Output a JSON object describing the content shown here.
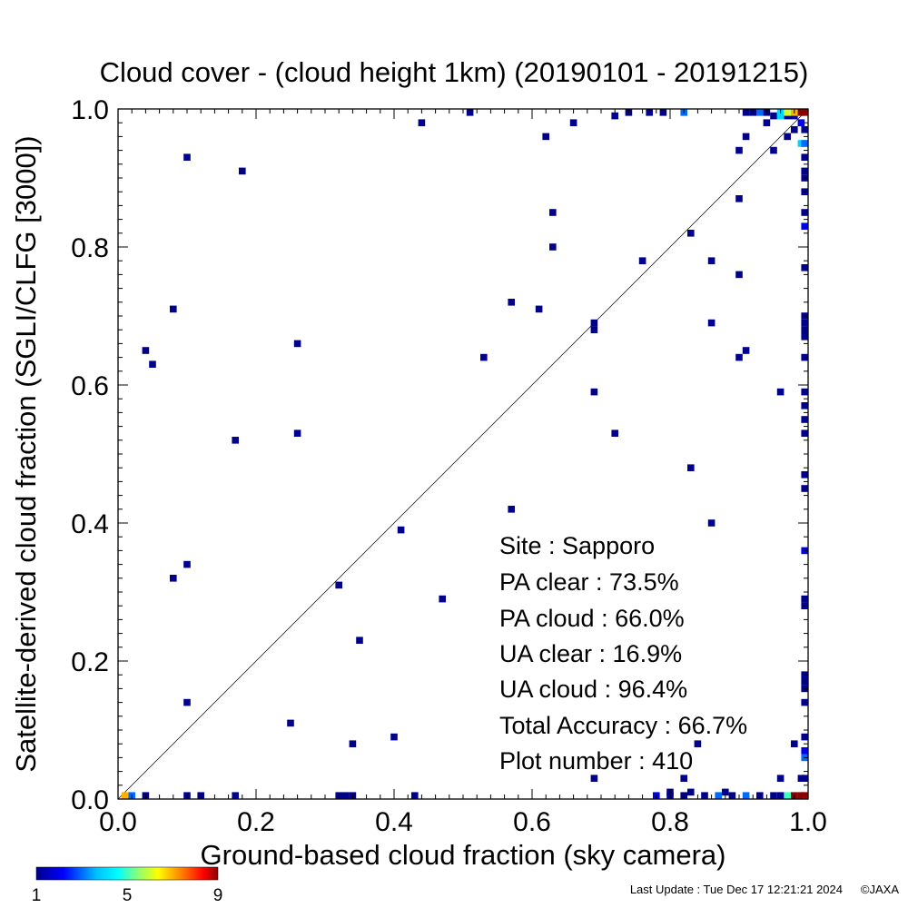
{
  "chart_data": {
    "type": "scatter",
    "title": "Cloud cover - (cloud height 1km)  (20190101 - 20191215)",
    "xlabel": "Ground-based cloud fraction (sky camera)",
    "ylabel": "Satellite-derived cloud fraction (SGLI/CLFG [3000])",
    "xlim": [
      0.0,
      1.0
    ],
    "ylim": [
      0.0,
      1.0
    ],
    "x_ticks": [
      "0.0",
      "0.2",
      "0.4",
      "0.6",
      "0.8",
      "1.0"
    ],
    "y_ticks": [
      "0.0",
      "0.2",
      "0.4",
      "0.6",
      "0.8",
      "1.0"
    ],
    "grid": false,
    "reference_line": "y = x",
    "colorbar": {
      "min": 1,
      "max": 9,
      "ticks": [
        "1",
        "5",
        "9"
      ]
    },
    "points": [
      [
        0.01,
        0.0,
        7
      ],
      [
        0.02,
        0.0,
        3
      ],
      [
        0.04,
        0.0,
        1
      ],
      [
        0.1,
        0.0,
        1
      ],
      [
        0.12,
        0.0,
        1
      ],
      [
        0.17,
        0.0,
        1
      ],
      [
        0.32,
        0.0,
        1
      ],
      [
        0.33,
        0.0,
        1
      ],
      [
        0.34,
        0.0,
        1
      ],
      [
        0.43,
        0.0,
        1
      ],
      [
        0.78,
        0.0,
        2
      ],
      [
        0.8,
        0.0,
        1
      ],
      [
        0.82,
        0.0,
        1
      ],
      [
        0.85,
        0.0,
        1
      ],
      [
        0.87,
        0.0,
        3
      ],
      [
        0.89,
        0.0,
        1
      ],
      [
        0.91,
        0.0,
        3
      ],
      [
        0.93,
        0.0,
        1
      ],
      [
        0.95,
        0.0,
        1
      ],
      [
        0.96,
        0.0,
        1
      ],
      [
        0.97,
        0.0,
        5
      ],
      [
        0.98,
        0.0,
        9
      ],
      [
        0.99,
        0.0,
        9
      ],
      [
        1.0,
        0.0,
        9
      ],
      [
        0.8,
        0.01,
        1
      ],
      [
        0.83,
        0.01,
        1
      ],
      [
        0.88,
        0.01,
        1
      ],
      [
        0.69,
        0.03,
        1
      ],
      [
        0.82,
        0.03,
        1
      ],
      [
        0.96,
        0.03,
        1
      ],
      [
        0.99,
        0.03,
        1
      ],
      [
        1.0,
        0.03,
        1
      ],
      [
        1.0,
        0.06,
        3
      ],
      [
        1.0,
        0.07,
        2
      ],
      [
        0.34,
        0.08,
        1
      ],
      [
        0.84,
        0.08,
        1
      ],
      [
        0.98,
        0.08,
        1
      ],
      [
        1.0,
        0.09,
        1
      ],
      [
        0.4,
        0.09,
        1
      ],
      [
        0.25,
        0.11,
        1
      ],
      [
        0.1,
        0.14,
        1
      ],
      [
        1.0,
        0.14,
        1
      ],
      [
        1.0,
        0.16,
        1
      ],
      [
        1.0,
        0.17,
        1
      ],
      [
        1.0,
        0.18,
        1
      ],
      [
        0.35,
        0.23,
        1
      ],
      [
        0.47,
        0.29,
        1
      ],
      [
        0.32,
        0.31,
        1
      ],
      [
        0.08,
        0.32,
        1
      ],
      [
        0.1,
        0.34,
        1
      ],
      [
        0.41,
        0.39,
        1
      ],
      [
        0.86,
        0.4,
        1
      ],
      [
        0.57,
        0.42,
        1
      ],
      [
        1.0,
        0.36,
        2
      ],
      [
        1.0,
        0.28,
        1
      ],
      [
        1.0,
        0.29,
        1
      ],
      [
        0.83,
        0.48,
        1
      ],
      [
        0.17,
        0.52,
        1
      ],
      [
        0.26,
        0.53,
        1
      ],
      [
        0.72,
        0.53,
        1
      ],
      [
        1.0,
        0.47,
        1
      ],
      [
        1.0,
        0.45,
        1
      ],
      [
        1.0,
        0.53,
        1
      ],
      [
        1.0,
        0.55,
        1
      ],
      [
        1.0,
        0.57,
        1
      ],
      [
        0.69,
        0.59,
        1
      ],
      [
        0.96,
        0.59,
        1
      ],
      [
        1.0,
        0.59,
        1
      ],
      [
        0.05,
        0.63,
        1
      ],
      [
        0.04,
        0.65,
        1
      ],
      [
        0.26,
        0.66,
        1
      ],
      [
        0.53,
        0.64,
        1
      ],
      [
        0.9,
        0.64,
        1
      ],
      [
        0.91,
        0.65,
        1
      ],
      [
        1.0,
        0.64,
        1
      ],
      [
        1.0,
        0.67,
        1
      ],
      [
        1.0,
        0.68,
        1
      ],
      [
        1.0,
        0.69,
        1
      ],
      [
        1.0,
        0.7,
        1
      ],
      [
        0.08,
        0.71,
        1
      ],
      [
        0.57,
        0.72,
        1
      ],
      [
        0.61,
        0.71,
        1
      ],
      [
        0.69,
        0.68,
        1
      ],
      [
        0.69,
        0.69,
        1
      ],
      [
        0.86,
        0.69,
        1
      ],
      [
        0.9,
        0.76,
        1
      ],
      [
        0.76,
        0.78,
        1
      ],
      [
        0.86,
        0.78,
        1
      ],
      [
        1.0,
        0.77,
        1
      ],
      [
        0.63,
        0.8,
        1
      ],
      [
        0.83,
        0.82,
        1
      ],
      [
        0.63,
        0.85,
        1
      ],
      [
        0.9,
        0.87,
        1
      ],
      [
        1.0,
        0.83,
        2
      ],
      [
        1.0,
        0.85,
        1
      ],
      [
        1.0,
        0.88,
        1
      ],
      [
        1.0,
        0.9,
        1
      ],
      [
        1.0,
        0.91,
        1
      ],
      [
        0.18,
        0.91,
        1
      ],
      [
        0.1,
        0.93,
        1
      ],
      [
        1.0,
        0.93,
        1
      ],
      [
        0.9,
        0.94,
        1
      ],
      [
        0.95,
        0.94,
        1
      ],
      [
        0.99,
        0.95,
        4
      ],
      [
        1.0,
        0.95,
        3
      ],
      [
        0.62,
        0.96,
        1
      ],
      [
        0.91,
        0.96,
        1
      ],
      [
        0.97,
        0.96,
        1
      ],
      [
        0.98,
        0.97,
        1
      ],
      [
        1.0,
        0.97,
        1
      ],
      [
        0.44,
        0.98,
        1
      ],
      [
        0.66,
        0.98,
        1
      ],
      [
        0.94,
        0.98,
        1
      ],
      [
        0.99,
        0.98,
        2
      ],
      [
        0.72,
        0.99,
        1
      ],
      [
        0.95,
        0.99,
        1
      ],
      [
        0.96,
        0.99,
        4
      ],
      [
        0.97,
        0.99,
        1
      ],
      [
        0.98,
        0.99,
        1
      ],
      [
        0.51,
        1.0,
        1
      ],
      [
        0.74,
        1.0,
        1
      ],
      [
        0.77,
        1.0,
        1
      ],
      [
        0.79,
        1.0,
        1
      ],
      [
        0.82,
        1.0,
        3
      ],
      [
        0.91,
        1.0,
        1
      ],
      [
        0.92,
        1.0,
        1
      ],
      [
        0.93,
        1.0,
        3
      ],
      [
        0.94,
        1.0,
        1
      ],
      [
        0.96,
        1.0,
        4
      ],
      [
        0.97,
        1.0,
        6
      ],
      [
        0.98,
        1.0,
        7
      ],
      [
        0.99,
        1.0,
        9
      ],
      [
        1.0,
        1.0,
        9
      ]
    ]
  },
  "stats": {
    "site": "Site : Sapporo",
    "pa_clear": "PA clear :  73.5%",
    "pa_cloud": "PA cloud :  66.0%",
    "ua_clear": "UA clear :  16.9%",
    "ua_cloud": "UA cloud :  96.4%",
    "total_accuracy": "Total Accuracy :  66.7%",
    "plot_number": "Plot number :       410"
  },
  "footer": {
    "last_update": "Last Update : Tue Dec 17 12:21:21 2024",
    "copyright": "©JAXA"
  }
}
